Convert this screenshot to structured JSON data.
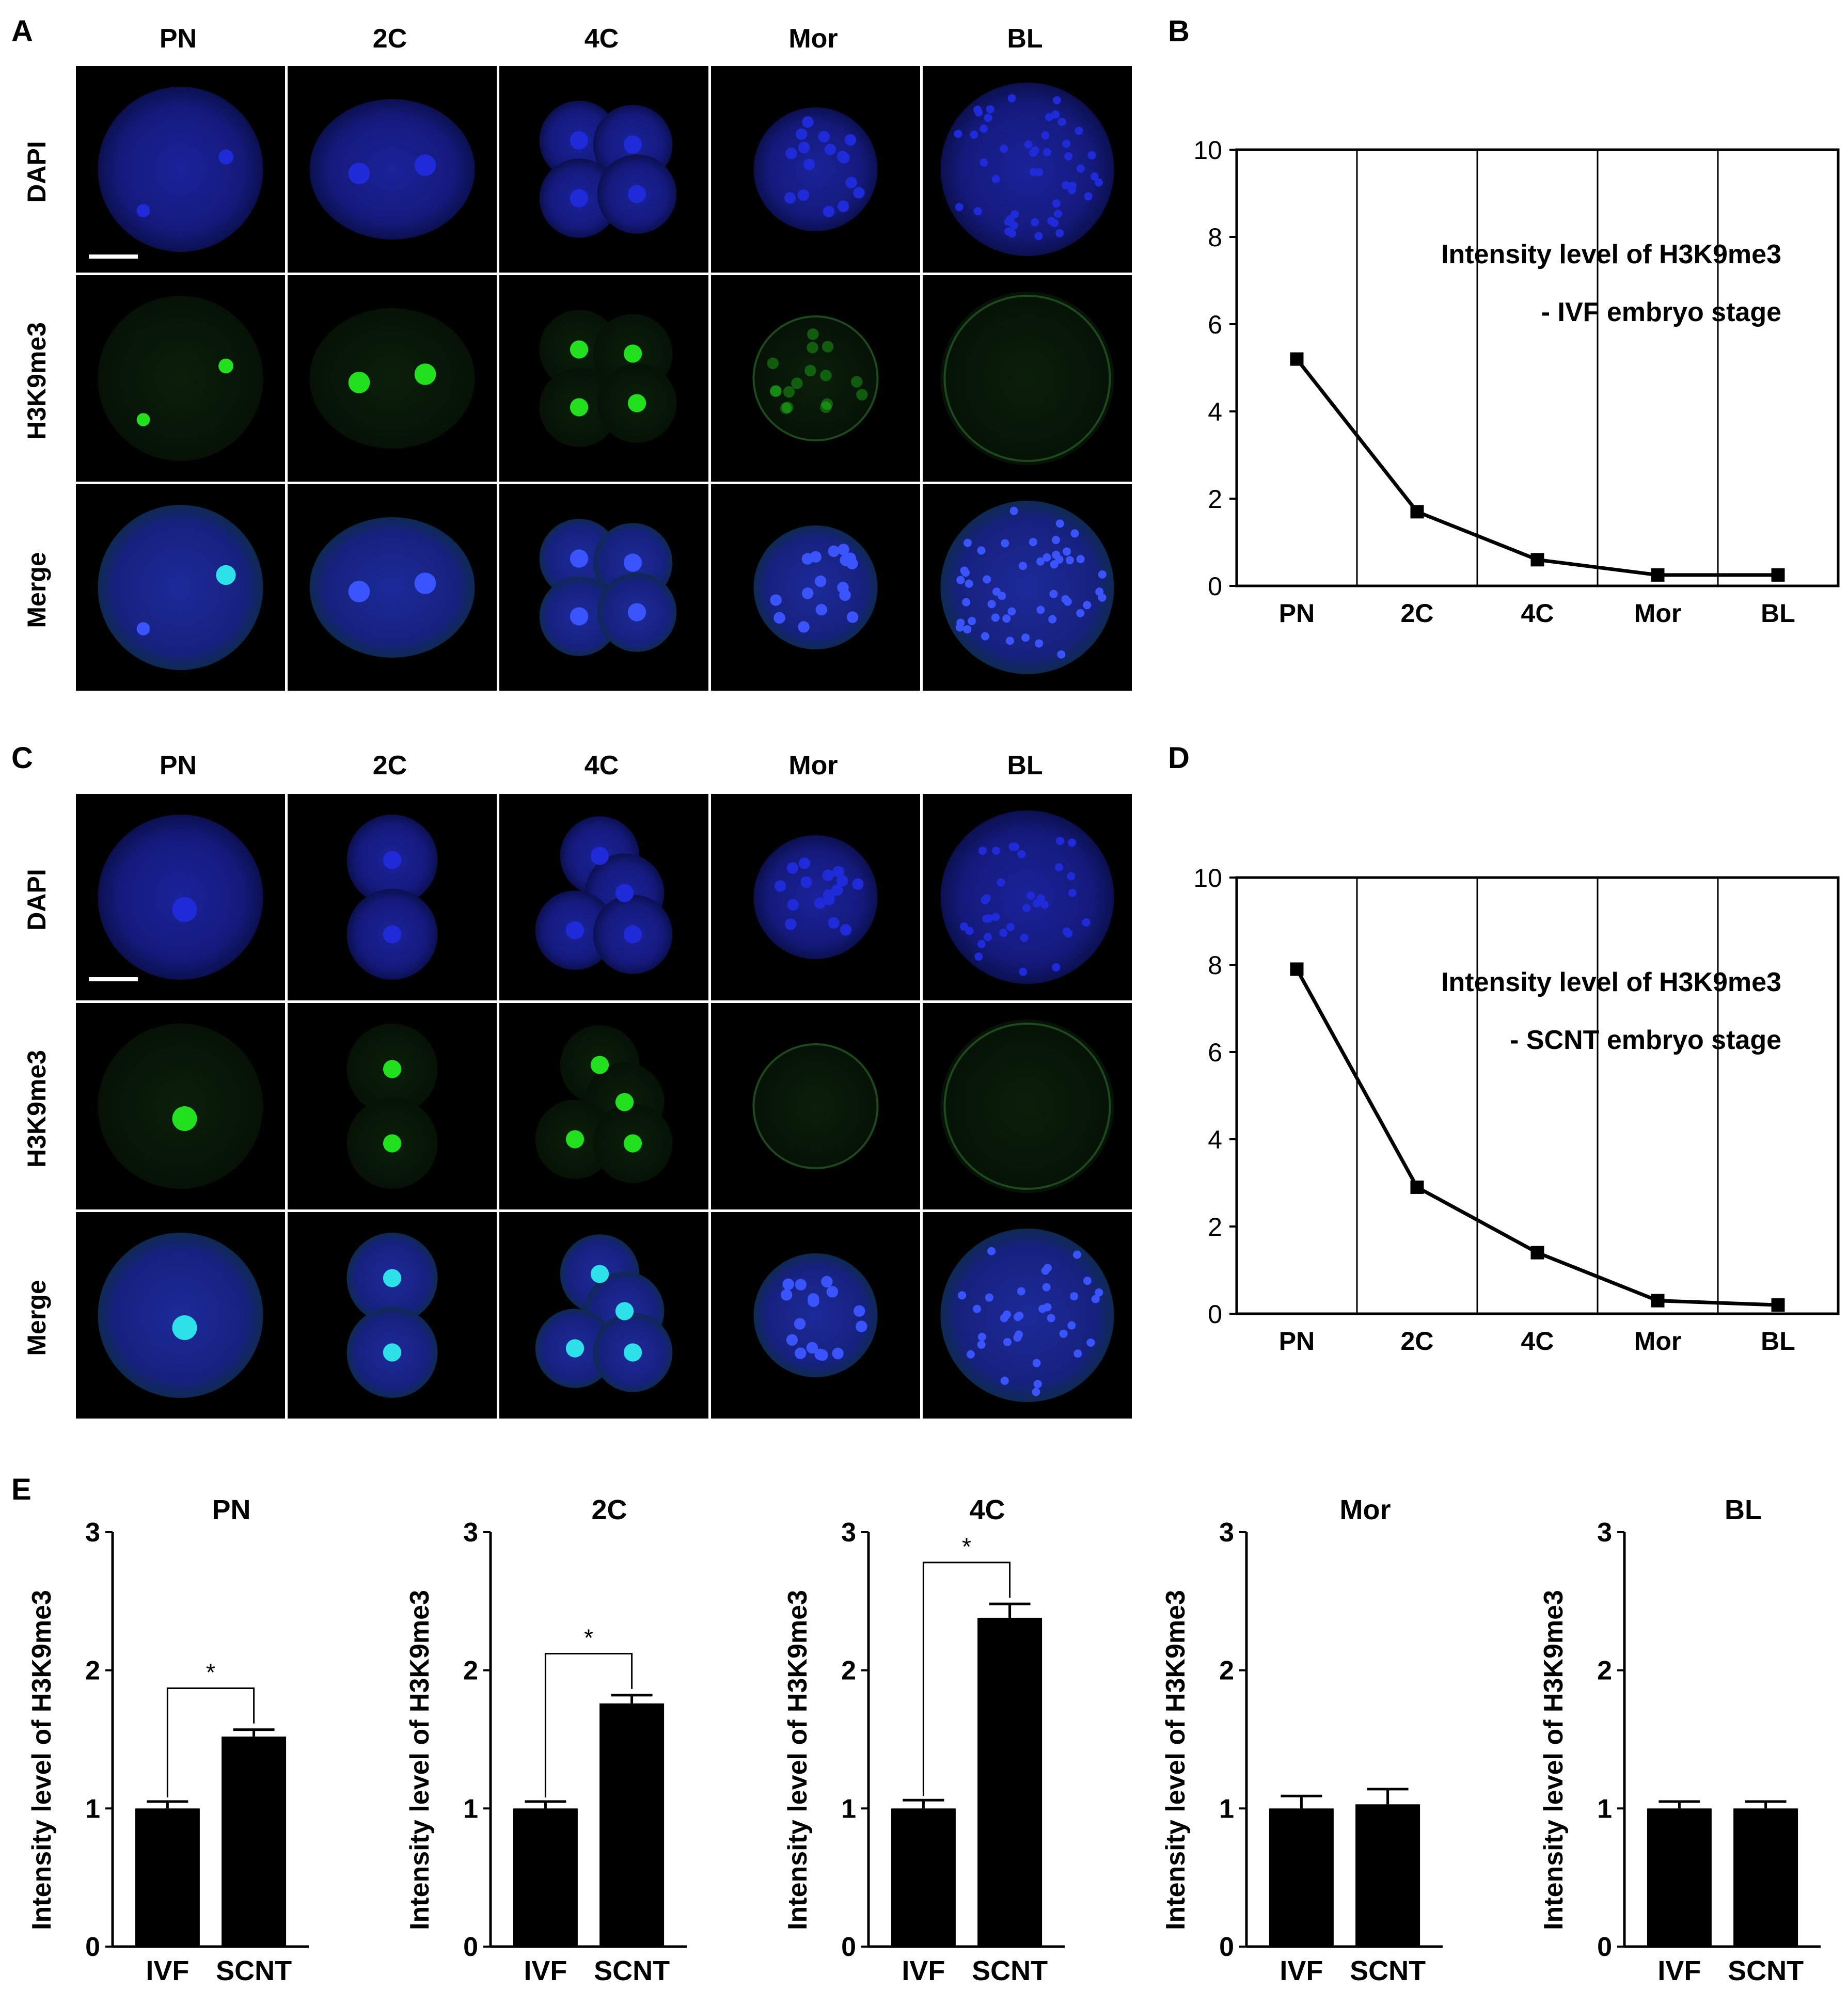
{
  "panels": {
    "A": {
      "letter": "A",
      "columns": [
        "PN",
        "2C",
        "4C",
        "Mor",
        "BL"
      ],
      "rows": [
        "DAPI",
        "H3K9me3",
        "Merge"
      ]
    },
    "C": {
      "letter": "C",
      "columns": [
        "PN",
        "2C",
        "4C",
        "Mor",
        "BL"
      ],
      "rows": [
        "DAPI",
        "H3K9me3",
        "Merge"
      ]
    },
    "B": {
      "letter": "B"
    },
    "D": {
      "letter": "D"
    },
    "E": {
      "letter": "E"
    }
  },
  "colors": {
    "dapi": "#1f2bd8",
    "h3k9me3": "#22e01e",
    "merge_nucleus": "#2ee0e8",
    "bar": "#000000"
  },
  "chart_data": [
    {
      "id": "B",
      "type": "line",
      "categories": [
        "PN",
        "2C",
        "4C",
        "Mor",
        "BL"
      ],
      "values": [
        5.2,
        1.7,
        0.6,
        0.25,
        0.25
      ],
      "ylim": [
        0,
        10
      ],
      "yticks": [
        "0",
        "2",
        "4",
        "6",
        "8",
        "10"
      ],
      "annotation": [
        "Intensity  level of H3K9me3",
        "- IVF embryo stage"
      ],
      "grid": "vertical lines between categories"
    },
    {
      "id": "D",
      "type": "line",
      "categories": [
        "PN",
        "2C",
        "4C",
        "Mor",
        "BL"
      ],
      "values": [
        7.9,
        2.9,
        1.4,
        0.3,
        0.2
      ],
      "ylim": [
        0,
        10
      ],
      "yticks": [
        "0",
        "2",
        "4",
        "6",
        "8",
        "10"
      ],
      "annotation": [
        "Intensity  level of H3K9me3",
        "- SCNT embryo stage"
      ],
      "grid": "vertical lines between categories"
    },
    {
      "id": "E1",
      "type": "bar",
      "title": "PN",
      "ylabel": "Intensity level of H3K9me3",
      "categories": [
        "IVF",
        "SCNT"
      ],
      "values": [
        1.0,
        1.52
      ],
      "errors": [
        0.05,
        0.05
      ],
      "ylim": [
        0,
        3
      ],
      "yticks": [
        "0",
        "1",
        "2",
        "3"
      ],
      "significance": "*"
    },
    {
      "id": "E2",
      "type": "bar",
      "title": "2C",
      "ylabel": "Intensity level of H3K9me3",
      "categories": [
        "IVF",
        "SCNT"
      ],
      "values": [
        1.0,
        1.76
      ],
      "errors": [
        0.05,
        0.06
      ],
      "ylim": [
        0,
        3
      ],
      "yticks": [
        "0",
        "1",
        "2",
        "3"
      ],
      "significance": "*"
    },
    {
      "id": "E3",
      "type": "bar",
      "title": "4C",
      "ylabel": "Intensity level of H3K9me3",
      "categories": [
        "IVF",
        "SCNT"
      ],
      "values": [
        1.0,
        2.38
      ],
      "errors": [
        0.06,
        0.1
      ],
      "ylim": [
        0,
        3
      ],
      "yticks": [
        "0",
        "1",
        "2",
        "3"
      ],
      "significance": "*"
    },
    {
      "id": "E4",
      "type": "bar",
      "title": "Mor",
      "ylabel": "Intensity level of H3K9me3",
      "categories": [
        "IVF",
        "SCNT"
      ],
      "values": [
        1.0,
        1.03
      ],
      "errors": [
        0.09,
        0.11
      ],
      "ylim": [
        0,
        3
      ],
      "yticks": [
        "0",
        "1",
        "2",
        "3"
      ],
      "significance": ""
    },
    {
      "id": "E5",
      "type": "bar",
      "title": "BL",
      "ylabel": "Intensity level of H3K9me3",
      "categories": [
        "IVF",
        "SCNT"
      ],
      "values": [
        1.0,
        1.0
      ],
      "errors": [
        0.05,
        0.05
      ],
      "ylim": [
        0,
        3
      ],
      "yticks": [
        "0",
        "1",
        "2",
        "3"
      ],
      "significance": ""
    }
  ]
}
